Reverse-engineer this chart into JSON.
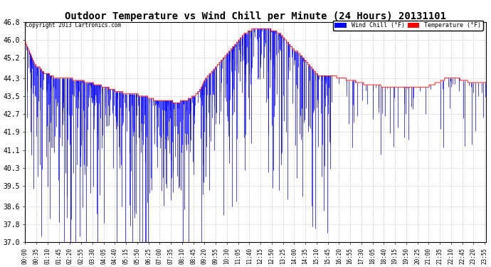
{
  "title": "Outdoor Temperature vs Wind Chill per Minute (24 Hours) 20131101",
  "copyright": "Copyright 2013 Cartronics.com",
  "ylim": [
    37.0,
    46.8
  ],
  "yticks": [
    46.8,
    46.0,
    45.2,
    44.3,
    43.5,
    42.7,
    41.9,
    41.1,
    40.3,
    39.5,
    38.6,
    37.8,
    37.0
  ],
  "bg_color": "#ffffff",
  "grid_color": "#c8c8c8",
  "temp_color": "#ff0000",
  "wind_color": "#0000ff",
  "legend_wind_bg": "#0000ff",
  "legend_temp_bg": "#ff0000",
  "title_fontsize": 10,
  "total_minutes": 1440,
  "temp_pattern": [
    45.9,
    45.7,
    45.5,
    45.3,
    45.1,
    44.9,
    44.8,
    44.8,
    44.7,
    44.6,
    44.5,
    44.5,
    44.5,
    44.4,
    44.4,
    44.3,
    44.3,
    44.3,
    44.3,
    44.3,
    44.3,
    44.3,
    44.3,
    44.3,
    44.3,
    44.2,
    44.2,
    44.2,
    44.2,
    44.2,
    44.2,
    44.1,
    44.1,
    44.1,
    44.1,
    44.1,
    44.0,
    44.0,
    44.0,
    44.0,
    43.9,
    43.9,
    43.9,
    43.9,
    43.8,
    43.8,
    43.8,
    43.7,
    43.7,
    43.7,
    43.7,
    43.6,
    43.6,
    43.6,
    43.6,
    43.6,
    43.6,
    43.6,
    43.6,
    43.5,
    43.5,
    43.5,
    43.5,
    43.5,
    43.4,
    43.4,
    43.4,
    43.3,
    43.3,
    43.3,
    43.3,
    43.3,
    43.3,
    43.3,
    43.3,
    43.3,
    43.3,
    43.2,
    43.2,
    43.2,
    43.2,
    43.3,
    43.3,
    43.3,
    43.3,
    43.4,
    43.4,
    43.5,
    43.5,
    43.6,
    43.7,
    43.8,
    44.0,
    44.2,
    44.3,
    44.4,
    44.5,
    44.6,
    44.7,
    44.8,
    44.9,
    45.0,
    45.1,
    45.2,
    45.3,
    45.4,
    45.5,
    45.6,
    45.7,
    45.8,
    45.9,
    46.0,
    46.1,
    46.2,
    46.3,
    46.3,
    46.4,
    46.4,
    46.5,
    46.5,
    46.5,
    46.5,
    46.5,
    46.5,
    46.5,
    46.5,
    46.5,
    46.5,
    46.4,
    46.4,
    46.4,
    46.3,
    46.3,
    46.2,
    46.1,
    46.0,
    45.9,
    45.8,
    45.7,
    45.6,
    45.5,
    45.5,
    45.4,
    45.3,
    45.2,
    45.1,
    45.0,
    44.9,
    44.8,
    44.7,
    44.6,
    44.5,
    44.4,
    44.4,
    44.4,
    44.4,
    44.4,
    44.4,
    44.4,
    44.4,
    44.4,
    44.4,
    44.3,
    44.3,
    44.3,
    44.3,
    44.3,
    44.2,
    44.2,
    44.2,
    44.2,
    44.2,
    44.1,
    44.1,
    44.1,
    44.1,
    44.0,
    44.0,
    44.0,
    44.0,
    44.0,
    44.0,
    44.0,
    44.0,
    44.0,
    43.9,
    43.9,
    43.9,
    43.9,
    43.9,
    43.9,
    43.9,
    43.9,
    43.9,
    43.9,
    43.9,
    43.9,
    43.9,
    43.9,
    43.9,
    43.9,
    43.9,
    43.9,
    43.9,
    43.9,
    43.9,
    43.9,
    43.9,
    43.9,
    43.9,
    44.0,
    44.0,
    44.0,
    44.1,
    44.1,
    44.1,
    44.2,
    44.2,
    44.3,
    44.3,
    44.3,
    44.3,
    44.3,
    44.3,
    44.3,
    44.3,
    44.2,
    44.2,
    44.2,
    44.2,
    44.1,
    44.1,
    44.1,
    44.1,
    44.1,
    44.1,
    44.1,
    44.1,
    44.1,
    44.1
  ]
}
